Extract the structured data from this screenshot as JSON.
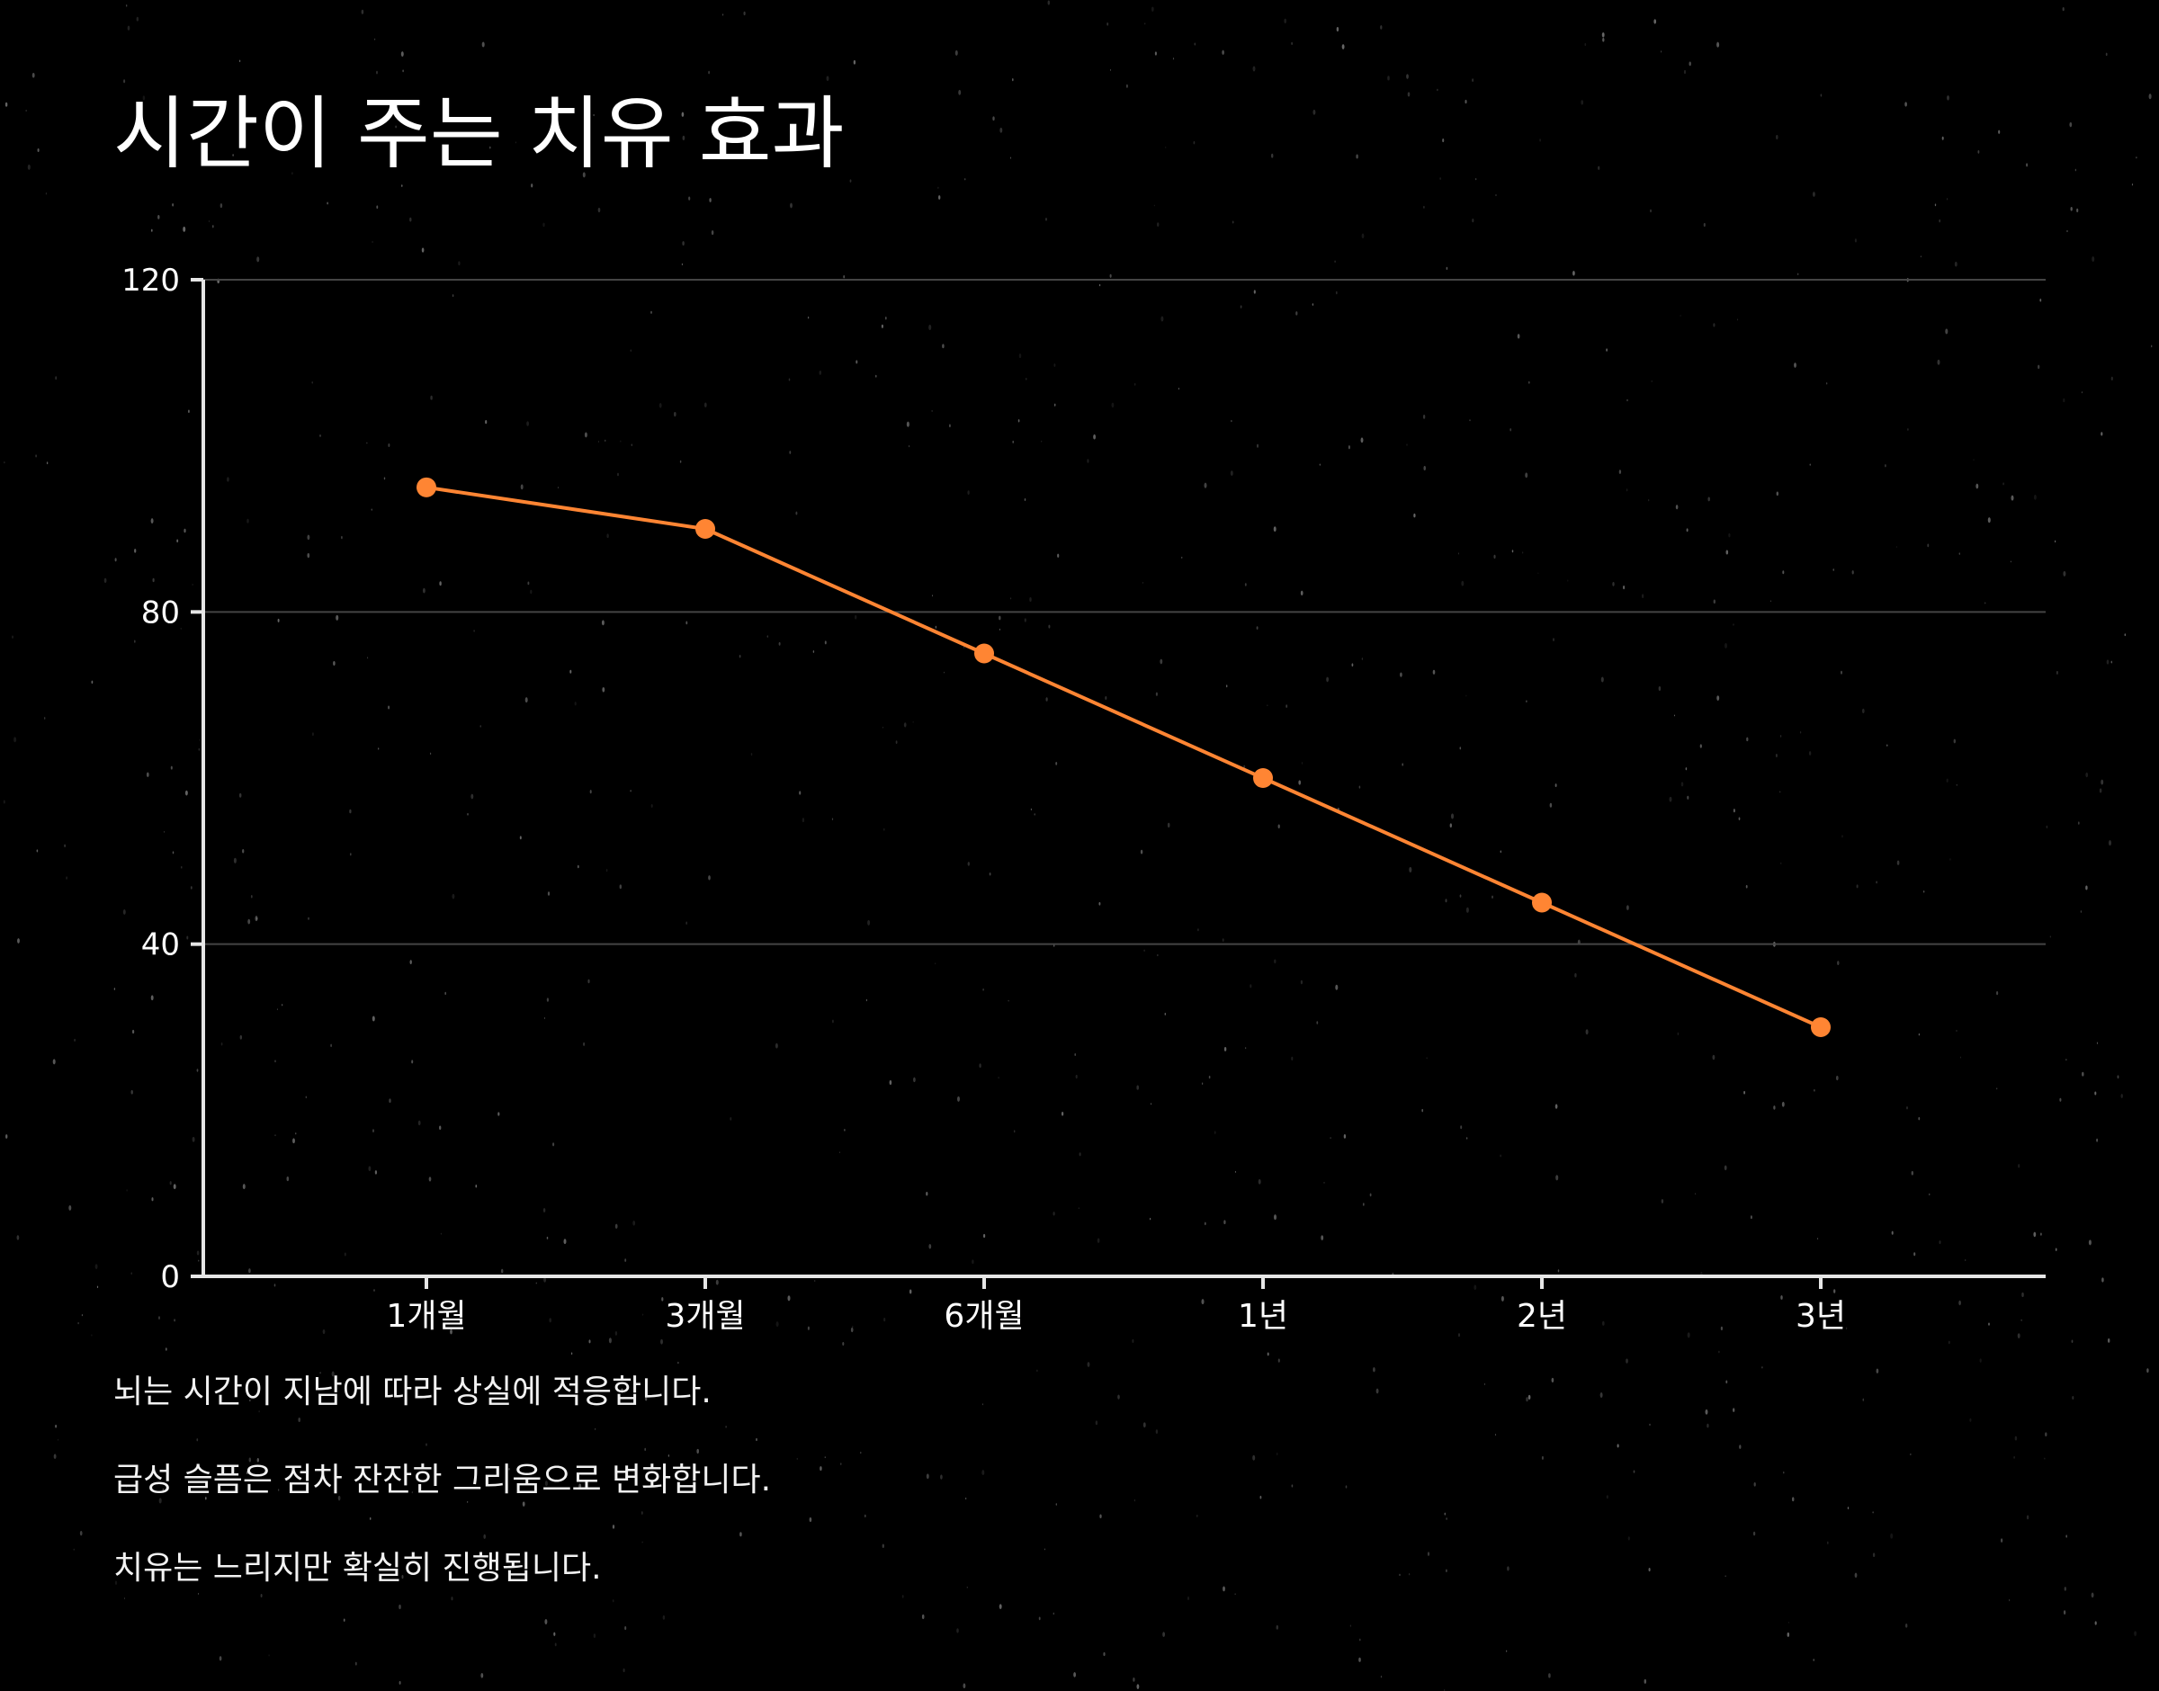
{
  "title": "시간이 주는 치유 효과",
  "colors": {
    "background": "#000000",
    "line": "#ff8533",
    "axis": "#e6e6e6",
    "grid": "#444444",
    "text": "#ffffff"
  },
  "chart_data": {
    "type": "line",
    "title": "시간이 주는 치유 효과",
    "xlabel": "",
    "ylabel": "",
    "categories": [
      "1개월",
      "3개월",
      "6개월",
      "1년",
      "2년",
      "3년"
    ],
    "series": [
      {
        "values": [
          95,
          90,
          75,
          60,
          45,
          30
        ]
      }
    ],
    "ylim": [
      0,
      120
    ],
    "yticks": [
      "0",
      "40",
      "80",
      "120"
    ],
    "grid": true,
    "legend": "none"
  },
  "notes": [
    "뇌는 시간이 지남에 따라 상실에 적응합니다.",
    "급성 슬픔은 점차 잔잔한 그리움으로 변화합니다.",
    "치유는 느리지만 확실히 진행됩니다."
  ]
}
